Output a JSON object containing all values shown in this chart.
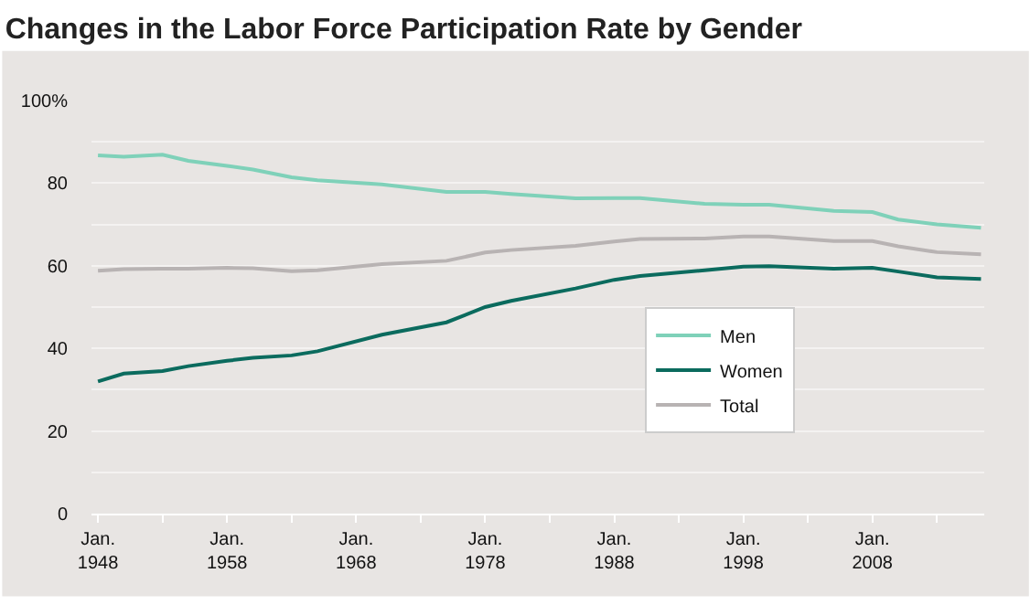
{
  "chart_data": {
    "type": "line",
    "title": "Changes in the Labor Force Participation Rate by Gender",
    "x": [
      "1948-01",
      "1950-01",
      "1953-01",
      "1955-01",
      "1958-01",
      "1960-01",
      "1963-01",
      "1965-01",
      "1970-01",
      "1975-01",
      "1978-01",
      "1980-01",
      "1985-01",
      "1988-01",
      "1990-01",
      "1995-01",
      "1998-01",
      "2000-01",
      "2005-01",
      "2008-01",
      "2010-01",
      "2013-01",
      "2016-06"
    ],
    "series": [
      {
        "name": "Men",
        "color": "#7fd1b9",
        "values": [
          86.7,
          86.4,
          86.9,
          85.4,
          84.2,
          83.3,
          81.4,
          80.7,
          79.7,
          77.9,
          77.9,
          77.4,
          76.3,
          76.4,
          76.4,
          75.0,
          74.8,
          74.8,
          73.3,
          73.0,
          71.2,
          70.0,
          69.2
        ]
      },
      {
        "name": "Women",
        "color": "#0b6b5e",
        "values": [
          32.0,
          33.9,
          34.5,
          35.7,
          37.0,
          37.7,
          38.3,
          39.3,
          43.3,
          46.3,
          50.0,
          51.5,
          54.5,
          56.6,
          57.5,
          58.9,
          59.8,
          59.9,
          59.3,
          59.5,
          58.6,
          57.2,
          56.8
        ]
      },
      {
        "name": "Total",
        "color": "#b8b3b3",
        "values": [
          58.8,
          59.2,
          59.3,
          59.3,
          59.5,
          59.4,
          58.7,
          58.9,
          60.4,
          61.2,
          63.2,
          63.8,
          64.8,
          65.9,
          66.5,
          66.6,
          67.1,
          67.1,
          66.0,
          66.0,
          64.7,
          63.3,
          62.8
        ]
      }
    ],
    "xlim": [
      "1947-07",
      "2016-09"
    ],
    "xticks": [
      {
        "value": "1948-01",
        "label": "Jan.\n1948"
      },
      {
        "value": "1953-01",
        "label": null
      },
      {
        "value": "1958-01",
        "label": "Jan.\n1958"
      },
      {
        "value": "1963-01",
        "label": null
      },
      {
        "value": "1968-01",
        "label": "Jan.\n1968"
      },
      {
        "value": "1973-01",
        "label": null
      },
      {
        "value": "1978-01",
        "label": "Jan.\n1978"
      },
      {
        "value": "1983-01",
        "label": null
      },
      {
        "value": "1988-01",
        "label": "Jan.\n1988"
      },
      {
        "value": "1993-01",
        "label": null
      },
      {
        "value": "1998-01",
        "label": "Jan.\n1998"
      },
      {
        "value": "2003-01",
        "label": null
      },
      {
        "value": "2008-01",
        "label": "Jan.\n2008"
      },
      {
        "value": "2013-01",
        "label": null
      }
    ],
    "ylim": [
      0,
      100
    ],
    "yticks": [
      0,
      {
        "value": 10,
        "label": null
      },
      20,
      {
        "value": 30,
        "label": null
      },
      40,
      {
        "value": 50,
        "label": null
      },
      60,
      {
        "value": 70,
        "label": null
      },
      80,
      {
        "value": 90,
        "label": null
      },
      {
        "value": 100,
        "label": "100%"
      }
    ],
    "grid": "y",
    "legend": "right",
    "marker": "none",
    "line_style": "solid"
  }
}
